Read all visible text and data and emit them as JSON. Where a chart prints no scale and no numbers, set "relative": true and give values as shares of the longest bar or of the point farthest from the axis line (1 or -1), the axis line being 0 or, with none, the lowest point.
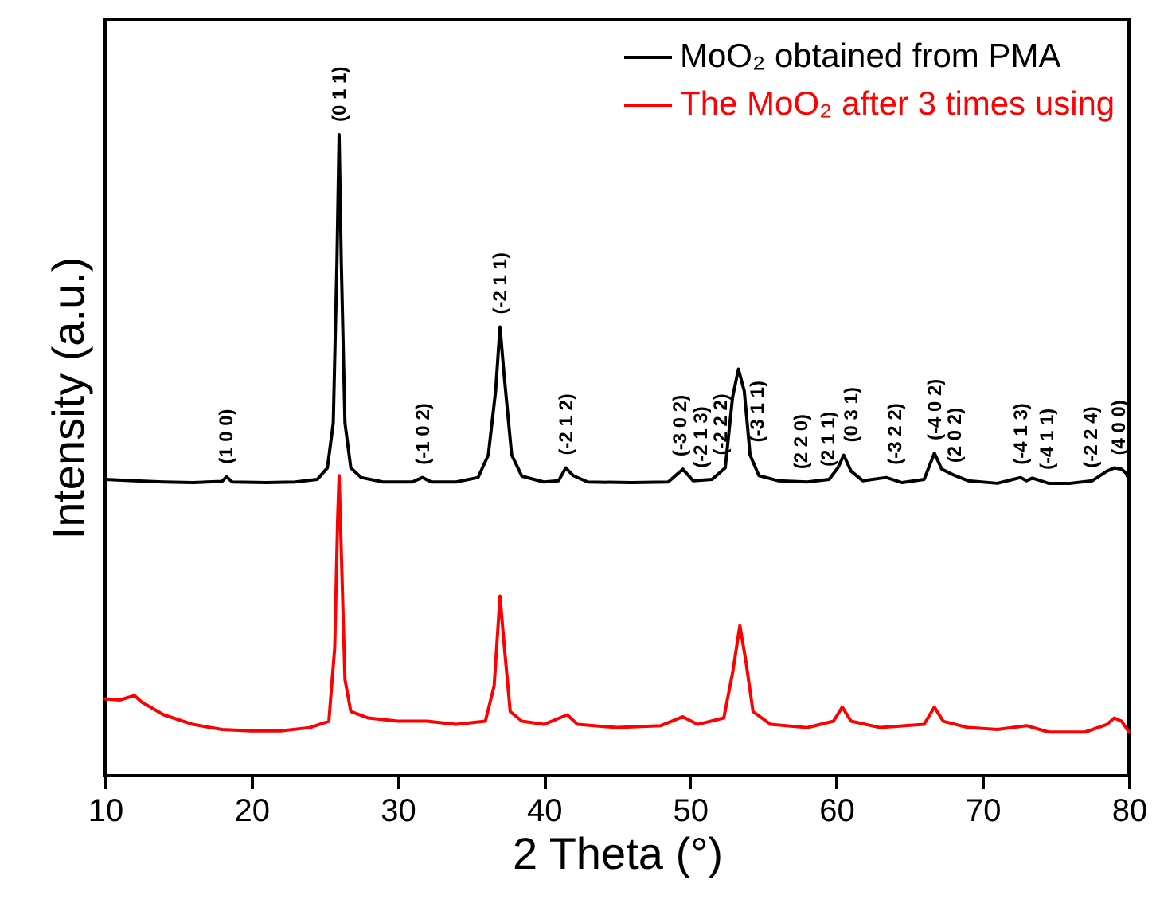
{
  "chart_data": {
    "type": "line",
    "relative": true,
    "xlabel": "2 Theta (°)",
    "ylabel": "Intensity (a.u.)",
    "xlim": [
      10,
      80
    ],
    "xticks": [
      10,
      20,
      30,
      40,
      50,
      60,
      70,
      80
    ],
    "legend": "top right",
    "series": [
      {
        "name": "MoO₂ obtained from PMA",
        "color": "#000000",
        "x": [
          10,
          12,
          14,
          16,
          18,
          18.3,
          18.7,
          21,
          23,
          24.5,
          25.2,
          25.6,
          25.85,
          26.0,
          26.15,
          26.4,
          26.8,
          27.5,
          29,
          31,
          31.7,
          32.3,
          34,
          35.5,
          36.2,
          36.7,
          37.0,
          37.3,
          37.8,
          38.5,
          40,
          41,
          41.5,
          42,
          43,
          46,
          48.5,
          49.5,
          50.2,
          51.5,
          52.4,
          52.9,
          53.3,
          53.7,
          54.1,
          54.7,
          56,
          58,
          59.5,
          60.1,
          60.5,
          61,
          61.8,
          63.4,
          64.5,
          66,
          66.7,
          67.2,
          68.1,
          69,
          71,
          72.6,
          73,
          73.4,
          74.5,
          76,
          77.5,
          78.5,
          79,
          79.5,
          79.8,
          80
        ],
        "values": [
          0.462,
          0.46,
          0.458,
          0.457,
          0.459,
          0.466,
          0.458,
          0.457,
          0.458,
          0.462,
          0.48,
          0.55,
          0.8,
          1.0,
          0.8,
          0.55,
          0.48,
          0.465,
          0.458,
          0.458,
          0.465,
          0.458,
          0.458,
          0.465,
          0.5,
          0.6,
          0.7,
          0.62,
          0.5,
          0.467,
          0.458,
          0.46,
          0.48,
          0.468,
          0.458,
          0.457,
          0.458,
          0.478,
          0.46,
          0.462,
          0.48,
          0.59,
          0.634,
          0.6,
          0.5,
          0.468,
          0.46,
          0.458,
          0.462,
          0.48,
          0.5,
          0.475,
          0.46,
          0.465,
          0.457,
          0.462,
          0.503,
          0.478,
          0.468,
          0.46,
          0.456,
          0.465,
          0.46,
          0.464,
          0.456,
          0.456,
          0.46,
          0.475,
          0.48,
          0.478,
          0.472,
          0.462
        ]
      },
      {
        "name": "The MoO₂ after 3 times using",
        "color": "#ff0000",
        "x": [
          10,
          11,
          12,
          12.5,
          14,
          16,
          18,
          20,
          22,
          24,
          25.3,
          25.7,
          25.9,
          26.0,
          26.15,
          26.4,
          26.8,
          28,
          30,
          32,
          34,
          36,
          36.6,
          37.0,
          37.3,
          37.7,
          38.5,
          40,
          41.6,
          42.3,
          45,
          48,
          49.5,
          50.5,
          52.3,
          52.9,
          53.4,
          53.8,
          54.3,
          55.5,
          58,
          59.8,
          60.4,
          61,
          63,
          66,
          66.7,
          67.3,
          69,
          71,
          73,
          74.5,
          77,
          78.5,
          79,
          79.5,
          80
        ],
        "values": [
          0.12,
          0.118,
          0.125,
          0.115,
          0.095,
          0.08,
          0.072,
          0.07,
          0.07,
          0.075,
          0.085,
          0.2,
          0.4,
          0.468,
          0.35,
          0.15,
          0.1,
          0.09,
          0.085,
          0.085,
          0.08,
          0.085,
          0.14,
          0.28,
          0.2,
          0.1,
          0.085,
          0.08,
          0.095,
          0.08,
          0.075,
          0.078,
          0.092,
          0.08,
          0.09,
          0.16,
          0.234,
          0.18,
          0.1,
          0.08,
          0.075,
          0.085,
          0.107,
          0.085,
          0.075,
          0.08,
          0.107,
          0.085,
          0.075,
          0.072,
          0.078,
          0.068,
          0.068,
          0.08,
          0.09,
          0.085,
          0.068
        ]
      }
    ],
    "annotations": [
      {
        "text": "(1 0 0)",
        "x": 18.3,
        "y": 0.466
      },
      {
        "text": "(0 1 1)",
        "x": 26.0,
        "y": 1.0
      },
      {
        "text": "(-1 0 2)",
        "x": 31.7,
        "y": 0.465
      },
      {
        "text": "(-2 1 1)",
        "x": 37.0,
        "y": 0.7
      },
      {
        "text": "(-2 1 2)",
        "x": 41.5,
        "y": 0.48
      },
      {
        "text": "(-3 0 2)",
        "x": 49.3,
        "y": 0.474
      },
      {
        "text": "(-2 1 3)",
        "x": 50.7,
        "y": 0.46
      },
      {
        "text": "(-2 2 2)",
        "x": 52.1,
        "y": 0.468
      },
      {
        "text": "(-3 1 1)",
        "x": 54.6,
        "y": 0.473
      },
      {
        "text": "(2 2 0)",
        "x": 57.6,
        "y": 0.458
      },
      {
        "text": "(2 1 1)",
        "x": 59.4,
        "y": 0.462
      },
      {
        "text": "(0 3 1)",
        "x": 61.0,
        "y": 0.475
      },
      {
        "text": "(-3 2 2)",
        "x": 64.0,
        "y": 0.461
      },
      {
        "text": "(-4 0 2)",
        "x": 66.7,
        "y": 0.503
      },
      {
        "text": "(2 0 2)",
        "x": 68.1,
        "y": 0.468
      },
      {
        "text": "(-4 1 3)",
        "x": 72.6,
        "y": 0.465
      },
      {
        "text": "(-4 1 1)",
        "x": 74.4,
        "y": 0.457
      },
      {
        "text": "(-2 2 4)",
        "x": 77.4,
        "y": 0.46
      },
      {
        "text": "(4 0 0)",
        "x": 79.3,
        "y": 0.479
      }
    ]
  }
}
